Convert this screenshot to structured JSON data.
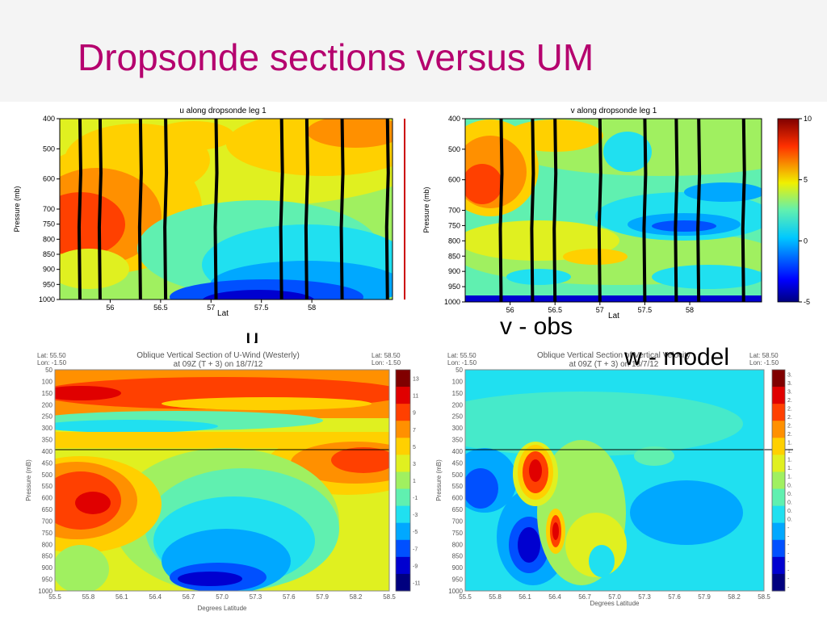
{
  "slide": {
    "title": "Dropsonde sections versus UM"
  },
  "captions": {
    "u": "u",
    "v_obs": "v - obs",
    "w_model": "w - model"
  },
  "colors": {
    "title": "#b5006e",
    "jet": [
      "#00007f",
      "#0000d0",
      "#0050ff",
      "#00a8ff",
      "#20e0f0",
      "#60f0b0",
      "#a0f060",
      "#e0f020",
      "#ffd000",
      "#ff9000",
      "#ff4000",
      "#e00000",
      "#800000"
    ]
  },
  "chart_data": [
    {
      "type": "heatmap",
      "title": "u along dropsonde leg 1",
      "xlabel": "Lat",
      "ylabel": "Pressure (mb)",
      "xlim": [
        55.5,
        58.8
      ],
      "ylim": [
        1000,
        400
      ],
      "xticks": [
        "56",
        "56.5",
        "57",
        "57.5",
        "58"
      ],
      "yticks": [
        "400",
        "500",
        "600",
        "700",
        "750",
        "800",
        "850",
        "900",
        "950",
        "1000"
      ],
      "sonde_lats": [
        55.7,
        55.9,
        56.3,
        56.55,
        57.05,
        57.7,
        57.95,
        58.3,
        58.75
      ]
    },
    {
      "type": "heatmap",
      "title": "v along dropsonde leg 1",
      "xlabel": "Lat",
      "ylabel": "Pressure (mb)",
      "xlim": [
        55.5,
        58.8
      ],
      "ylim": [
        1000,
        400
      ],
      "xticks": [
        "56",
        "56.5",
        "57",
        "57.5",
        "58"
      ],
      "yticks": [
        "400",
        "500",
        "600",
        "700",
        "750",
        "800",
        "850",
        "900",
        "950",
        "1000"
      ],
      "colorbar": {
        "min": -5,
        "max": 10,
        "ticks": [
          "10",
          "5",
          "0",
          "-5"
        ]
      },
      "sonde_lats": [
        55.9,
        56.25,
        56.5,
        57.0,
        57.5,
        57.85,
        58.1,
        58.6
      ]
    },
    {
      "type": "heatmap",
      "title": "Oblique Vertical Section of U-Wind (Westerly)",
      "subtitle": "at 09Z (T + 3) on 18/7/12",
      "xlabel": "Degrees Latitude",
      "ylabel": "Pressure (mB)",
      "corner_left": [
        "Lat:   55.50",
        "Lon:   -1.50"
      ],
      "corner_right": [
        "Lat:   58.50",
        "Lon:   -1.50"
      ],
      "xlim": [
        55.5,
        58.5
      ],
      "ylim": [
        1000,
        50
      ],
      "xticks": [
        "55.5",
        "55.8",
        "56.1",
        "56.4",
        "56.7",
        "57.0",
        "57.3",
        "57.6",
        "57.9",
        "58.2",
        "58.5"
      ],
      "yticks": [
        "50",
        "100",
        "150",
        "200",
        "250",
        "300",
        "350",
        "400",
        "450",
        "500",
        "550",
        "600",
        "650",
        "700",
        "750",
        "800",
        "850",
        "900",
        "950",
        "1000"
      ],
      "colorbar_labels": [
        "13",
        "11",
        "9",
        "7",
        "5",
        "3",
        "1",
        "-1",
        "-3",
        "-5",
        "-7",
        "-9",
        "-11"
      ],
      "reference_line_hpa": 400
    },
    {
      "type": "heatmap",
      "title": "Oblique Vertical Section of Vertical Velocity",
      "subtitle": "at 09Z (T + 3) on 18/7/12",
      "xlabel": "Degrees Latitude",
      "ylabel": "Pressure (mB)",
      "corner_left": [
        "Lat:   55.50",
        "Lon:   -1.50"
      ],
      "corner_right": [
        "Lat:   58.50",
        "Lon:   -1.50"
      ],
      "xlim": [
        55.5,
        58.5
      ],
      "ylim": [
        1000,
        50
      ],
      "xticks": [
        "55.5",
        "55.8",
        "56.1",
        "56.4",
        "56.7",
        "57.0",
        "57.3",
        "57.6",
        "57.9",
        "58.2",
        "58.5"
      ],
      "yticks": [
        "50",
        "100",
        "150",
        "200",
        "250",
        "300",
        "350",
        "400",
        "450",
        "500",
        "550",
        "600",
        "650",
        "700",
        "750",
        "800",
        "850",
        "900",
        "950",
        "1000"
      ],
      "colorbar_labels": [
        "3.",
        "3.",
        "3.",
        "2.",
        "2.",
        "2.",
        "2.",
        "2.",
        "1.",
        "1.",
        "1.",
        "1.",
        "1.",
        "0.",
        "0.",
        "0.",
        "0.",
        "0.",
        "-",
        "-",
        "-",
        "-",
        "-",
        "-",
        "-",
        "-"
      ],
      "reference_line_hpa": 400
    }
  ]
}
